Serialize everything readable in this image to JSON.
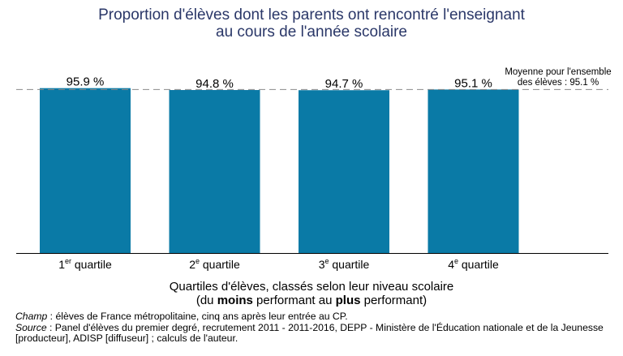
{
  "chart_data": {
    "type": "bar",
    "title_lines": [
      "Proportion d'élèves dont les parents ont rencontré l'enseignant",
      "au cours de l'année scolaire"
    ],
    "categories": [
      {
        "num": "1",
        "sup": "er",
        "word": "quartile"
      },
      {
        "num": "2",
        "sup": "e",
        "word": "quartile"
      },
      {
        "num": "3",
        "sup": "e",
        "word": "quartile"
      },
      {
        "num": "4",
        "sup": "e",
        "word": "quartile"
      }
    ],
    "values": [
      95.9,
      94.8,
      94.7,
      95.1
    ],
    "value_labels": [
      "95.9 %",
      "94.8 %",
      "94.7 %",
      "95.1 %"
    ],
    "ylim": [
      0,
      100
    ],
    "reference_line": {
      "value": 95.1,
      "label_lines": [
        "Moyenne pour l'ensemble",
        "des élèves : 95.1 %"
      ]
    },
    "xlabel": {
      "line1": "Quartiles d'élèves, classés selon leur niveau scolaire",
      "line2_prefix": "(du ",
      "line2_bold1": "moins",
      "line2_mid": " performant au ",
      "line2_bold2": "plus",
      "line2_suffix": " performant)"
    },
    "bar_color": "#0a7aa6",
    "title_color": "#2a3768"
  },
  "notes": {
    "champ_label": "Champ",
    "champ_text": " : élèves de France métropolitaine, cinq ans après leur entrée au CP.",
    "source_label": "Source",
    "source_text": " : Panel d'élèves du premier degré, recrutement 2011 - 2011-2016, DEPP - Ministère de l'Éducation nationale et de la Jeunesse [producteur], ADISP [diffuseur] ; calculs de l'auteur."
  }
}
